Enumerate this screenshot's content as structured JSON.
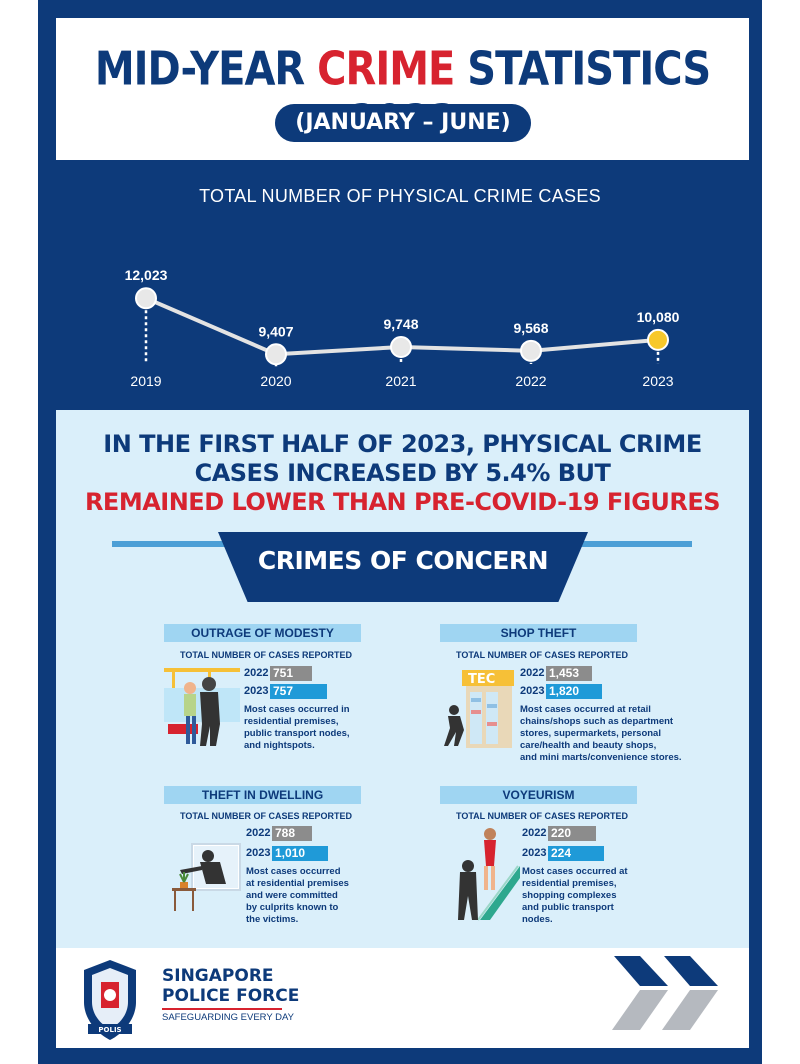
{
  "header": {
    "title_pre": "MID-YEAR ",
    "title_red": "CRIME",
    "title_post": " STATISTICS 2023",
    "period": "(JANUARY – JUNE)"
  },
  "chart_data": {
    "type": "line",
    "title": "TOTAL NUMBER OF PHYSICAL CRIME CASES",
    "x": [
      "2019",
      "2020",
      "2021",
      "2022",
      "2023"
    ],
    "labels": [
      "12,023",
      "9,407",
      "9,748",
      "9,568",
      "10,080"
    ],
    "values": [
      12023,
      9407,
      9748,
      9568,
      10080
    ],
    "highlight_color": "#f7c82b",
    "point_color": "#e8e8e8"
  },
  "headline": {
    "line1": "IN THE FIRST HALF OF 2023, PHYSICAL CRIME",
    "line2": "CASES INCREASED BY 5.4% BUT",
    "line3": "REMAINED LOWER THAN PRE-COVID-19 FIGURES"
  },
  "crimes_title": "CRIMES OF CONCERN",
  "crimes": [
    {
      "title": "OUTRAGE OF MODESTY",
      "sub": "TOTAL NUMBER OF CASES REPORTED",
      "y2022": "2022",
      "v2022": "751",
      "y2023": "2023",
      "v2023": "757",
      "desc": [
        "Most cases occurred in",
        "residential premises,",
        "public transport nodes,",
        "and nightspots."
      ]
    },
    {
      "title": "SHOP THEFT",
      "sub": "TOTAL NUMBER OF CASES REPORTED",
      "y2022": "2022",
      "v2022": "1,453",
      "y2023": "2023",
      "v2023": "1,820",
      "desc": [
        "Most cases occurred at retail",
        "chains/shops such as department",
        "stores, supermarkets, personal",
        "care/health and beauty shops,",
        "and mini marts/convenience stores."
      ],
      "sign": "TEC"
    },
    {
      "title": "THEFT IN DWELLING",
      "sub": "TOTAL NUMBER OF CASES REPORTED",
      "y2022": "2022",
      "v2022": "788",
      "y2023": "2023",
      "v2023": "1,010",
      "desc": [
        "Most cases occurred",
        "at residential premises",
        "and were committed",
        "by culprits known to",
        "the victims."
      ]
    },
    {
      "title": "VOYEURISM",
      "sub": "TOTAL NUMBER OF CASES REPORTED",
      "y2022": "2022",
      "v2022": "220",
      "y2023": "2023",
      "v2023": "224",
      "desc": [
        "Most cases occurred at",
        "residential premises,",
        "shopping complexes",
        "and public transport",
        "nodes."
      ]
    }
  ],
  "footer": {
    "org_line1": "SINGAPORE",
    "org_line2": "POLICE FORCE",
    "tagline": "SAFEGUARDING EVERY DAY",
    "badge_text": "POLIS"
  }
}
